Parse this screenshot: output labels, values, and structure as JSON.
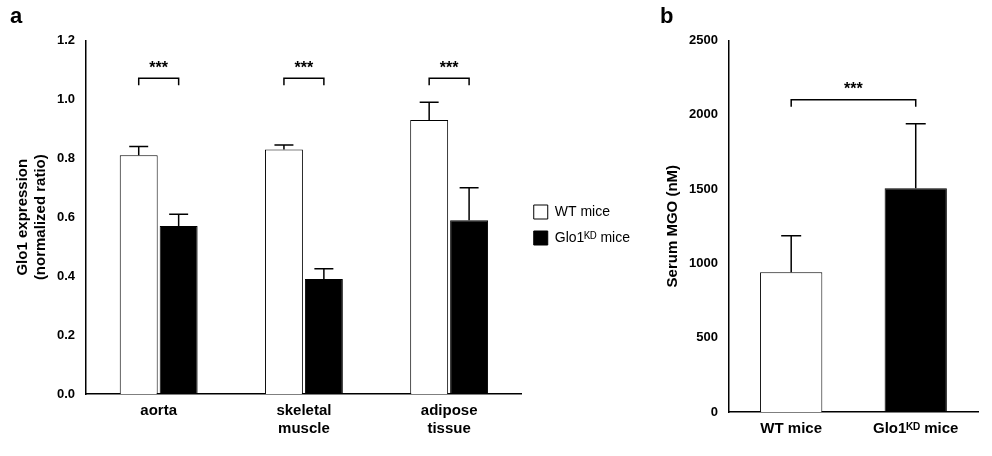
{
  "chart_data": [
    {
      "type": "bar",
      "title": "a",
      "categories": [
        "aorta",
        "skeletal muscle",
        "adipose tissue"
      ],
      "series": [
        {
          "name": "WT mice",
          "color": "#ffffff",
          "values": [
            0.81,
            0.83,
            0.93
          ],
          "errors": [
            0.03,
            0.015,
            0.06
          ]
        },
        {
          "name": "Glo1ᴷᴰ mice",
          "color": "#000000",
          "values": [
            0.57,
            0.39,
            0.59
          ],
          "errors": [
            0.04,
            0.035,
            0.11
          ]
        }
      ],
      "y_label": [
        "Glo1 expression",
        "(normalized ratio)"
      ],
      "ylim": [
        0,
        1.2
      ],
      "yticks": [
        {
          "value": 0,
          "label": "0.0"
        },
        0.2,
        0.4,
        0.6,
        0.8,
        {
          "value": 1,
          "label": "1.0"
        },
        1.2
      ],
      "grid": false,
      "legend": "right",
      "annotations": [
        {
          "text": "***",
          "category": "aorta"
        },
        {
          "text": "***",
          "category": "skeletal muscle"
        },
        {
          "text": "***",
          "category": "adipose tissue"
        }
      ]
    },
    {
      "type": "bar",
      "title": "b",
      "categories": [
        "WT mice",
        "Glo1ᴷᴰ mice"
      ],
      "values": [
        940,
        1505
      ],
      "errors": [
        245,
        435
      ],
      "colors": [
        "#ffffff",
        "#000000"
      ],
      "y_label": "Serum MGO (nM)",
      "ylim": [
        0,
        2500
      ],
      "yticks": [
        0,
        500,
        1000,
        1500,
        2000,
        2500
      ],
      "grid": false,
      "annotations": [
        {
          "text": "***",
          "categories": [
            "WT mice",
            "Glo1ᴷᴰ mice"
          ]
        }
      ]
    }
  ]
}
